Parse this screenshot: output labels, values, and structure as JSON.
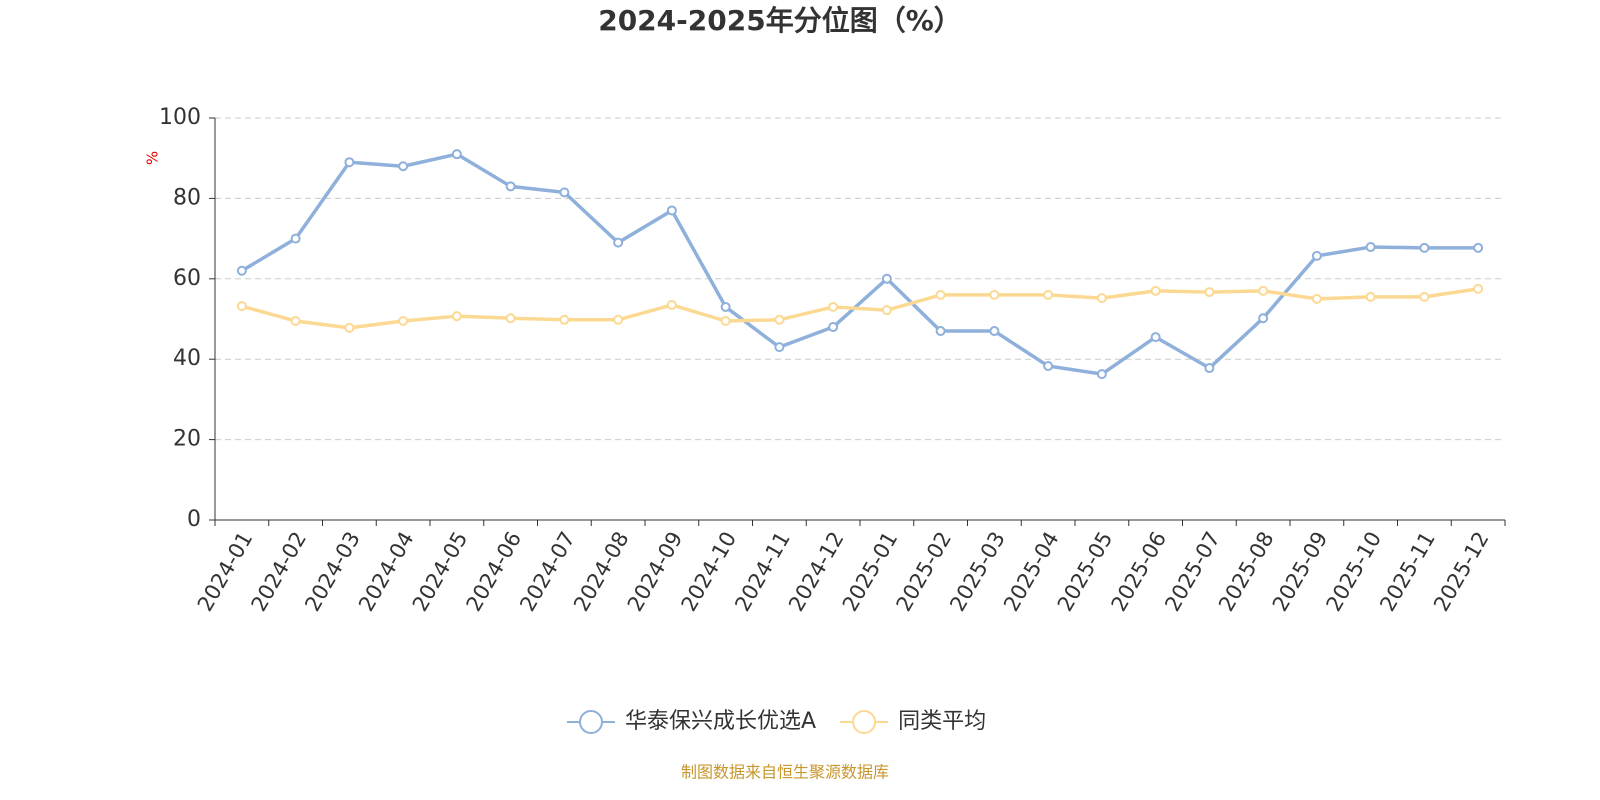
{
  "chart_data": {
    "type": "line",
    "title": "2024-2025年分位图（%）",
    "y_label": "%",
    "categories": [
      "2024-01",
      "2024-02",
      "2024-03",
      "2024-04",
      "2024-05",
      "2024-06",
      "2024-07",
      "2024-08",
      "2024-09",
      "2024-10",
      "2024-11",
      "2024-12",
      "2025-01",
      "2025-02",
      "2025-03",
      "2025-04",
      "2025-05",
      "2025-06",
      "2025-07",
      "2025-08",
      "2025-09",
      "2025-10",
      "2025-11",
      "2025-12"
    ],
    "series": [
      {
        "name": "华泰保兴成长优选A",
        "color": "#8eb0db",
        "values": [
          62,
          70,
          89,
          88,
          91,
          83,
          81.5,
          69,
          77,
          53,
          43,
          48,
          60,
          47,
          47,
          38.3,
          36.3,
          45.5,
          37.8,
          50.2,
          65.7,
          67.9,
          67.7,
          67.7
        ]
      },
      {
        "name": "同类平均",
        "color": "#fcd993",
        "values": [
          53.2,
          49.5,
          47.8,
          49.5,
          50.7,
          50.2,
          49.8,
          49.8,
          53.5,
          49.5,
          49.8,
          53,
          52.2,
          56,
          56,
          56,
          55.2,
          57,
          56.7,
          57,
          55,
          55.5,
          55.5,
          57.5
        ]
      }
    ],
    "ylim": [
      0,
      100
    ],
    "yticks": [
      0,
      20,
      40,
      60,
      80,
      100
    ],
    "grid": true,
    "source": "制图数据来自恒生聚源数据库"
  }
}
